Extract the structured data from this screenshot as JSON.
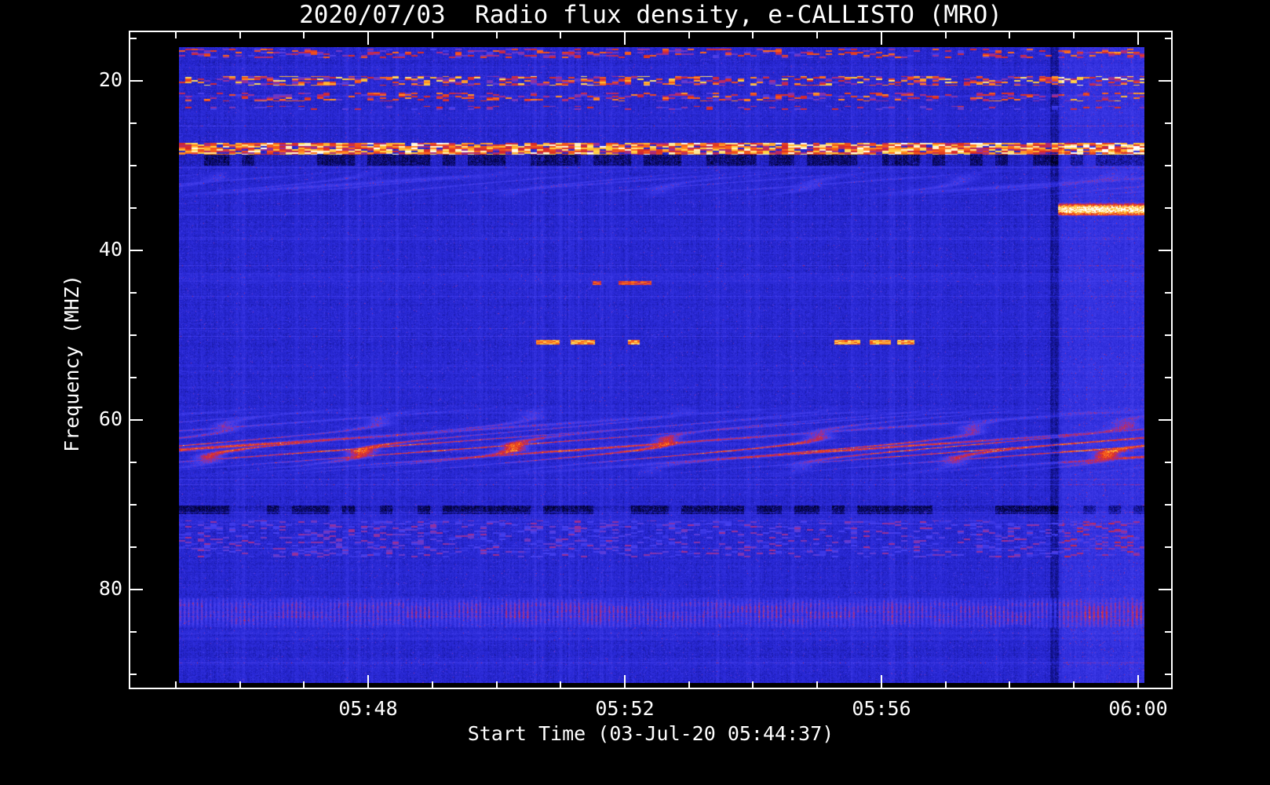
{
  "figure": {
    "background": "#000000",
    "frame_color": "#ffffff",
    "text_color": "#ffffff"
  },
  "chart_data": {
    "type": "heatmap",
    "title": "2020/07/03  Radio flux density, e-CALLISTO (MRO)",
    "xlabel": "Start Time (03-Jul-20 05:44:37)",
    "ylabel": "Frequency (MHZ)",
    "x_unit": "minutes after 05:44",
    "x_range": [
      1.05,
      16.1
    ],
    "x_ticks": [
      {
        "t": 4,
        "label": "05:48"
      },
      {
        "t": 8,
        "label": "05:52"
      },
      {
        "t": 12,
        "label": "05:56"
      },
      {
        "t": 16,
        "label": "06:00"
      }
    ],
    "x_minor_step": 1,
    "y_unit": "MHz",
    "y_range": [
      16,
      91
    ],
    "y_inverted": true,
    "y_ticks": [
      {
        "f": 20,
        "label": "20"
      },
      {
        "f": 40,
        "label": "40"
      },
      {
        "f": 60,
        "label": "60"
      },
      {
        "f": 80,
        "label": "80"
      }
    ],
    "y_minor_step": 5,
    "background_value": 0.14,
    "colormap_stops": [
      [
        0.0,
        [
          0,
          0,
          35
        ]
      ],
      [
        0.08,
        [
          10,
          10,
          110
        ]
      ],
      [
        0.22,
        [
          38,
          38,
          210
        ]
      ],
      [
        0.4,
        [
          70,
          65,
          240
        ]
      ],
      [
        0.52,
        [
          165,
          45,
          140
        ]
      ],
      [
        0.62,
        [
          215,
          40,
          40
        ]
      ],
      [
        0.74,
        [
          255,
          105,
          25
        ]
      ],
      [
        0.86,
        [
          255,
          210,
          60
        ]
      ],
      [
        1.0,
        [
          255,
          255,
          255
        ]
      ]
    ],
    "features": [
      {
        "type": "speckle",
        "f0": 16.2,
        "f1": 17.3,
        "density": 0.3,
        "vmin": 0.35,
        "vmax": 0.75,
        "s": 11
      },
      {
        "type": "speckle",
        "f0": 19.4,
        "f1": 20.5,
        "density": 0.45,
        "vmin": 0.4,
        "vmax": 0.92,
        "s": 12
      },
      {
        "type": "speckle",
        "f0": 21.4,
        "f1": 22.4,
        "density": 0.32,
        "vmin": 0.38,
        "vmax": 0.8,
        "s": 13
      },
      {
        "type": "speckle",
        "f0": 22.9,
        "f1": 23.4,
        "density": 0.18,
        "vmin": 0.35,
        "vmax": 0.65,
        "s": 14
      },
      {
        "type": "speckle",
        "f0": 27.3,
        "f1": 28.7,
        "density": 0.88,
        "vmin": 0.5,
        "vmax": 1.0,
        "s": 15
      },
      {
        "type": "dark",
        "f0": 28.7,
        "f1": 30.0,
        "amount": 0.15,
        "dash": true,
        "s": 16
      },
      {
        "type": "wavy",
        "f0": 30.4,
        "f1": 33.9,
        "amp": 2.0,
        "strength": 0.16,
        "s": 17
      },
      {
        "type": "hband",
        "f0": 34.3,
        "f1": 36.0,
        "t0": 14.75,
        "t1": 16.1,
        "v": 0.72,
        "s": 18
      },
      {
        "type": "dashes",
        "f": 43.8,
        "h": 0.45,
        "v": 0.66,
        "segs": [
          [
            7.5,
            7.63
          ],
          [
            7.9,
            8.42
          ]
        ],
        "s": 19
      },
      {
        "type": "dashes",
        "f": 50.8,
        "h": 0.55,
        "v": 0.8,
        "segs": [
          [
            6.62,
            6.99
          ],
          [
            7.16,
            7.54
          ],
          [
            8.05,
            8.23
          ],
          [
            11.27,
            11.67
          ],
          [
            11.82,
            12.15
          ],
          [
            12.25,
            12.52
          ]
        ],
        "s": 20
      },
      {
        "type": "wavy",
        "f0": 58.2,
        "f1": 66.8,
        "amp": 2.3,
        "strength": 0.3,
        "s": 21
      },
      {
        "type": "wavy",
        "f0": 61.8,
        "f1": 65.3,
        "amp": 2.0,
        "strength": 0.26,
        "s": 22
      },
      {
        "type": "dark",
        "f0": 70.1,
        "f1": 71.1,
        "amount": 0.17,
        "dash": true,
        "s": 23
      },
      {
        "type": "speckle",
        "f0": 71.8,
        "f1": 76.2,
        "density": 0.25,
        "vmin": 0.3,
        "vmax": 0.52,
        "s": 24
      },
      {
        "type": "stripes",
        "f0": 80.9,
        "f1": 84.6,
        "strength": 0.3,
        "s": 25
      },
      {
        "type": "vband",
        "t0": 14.82,
        "t1": 16.1,
        "strength": 0.1,
        "s": 26
      },
      {
        "type": "vline_dark",
        "t": 14.7,
        "w": 0.14,
        "amount": 0.09,
        "s": 27
      }
    ]
  }
}
